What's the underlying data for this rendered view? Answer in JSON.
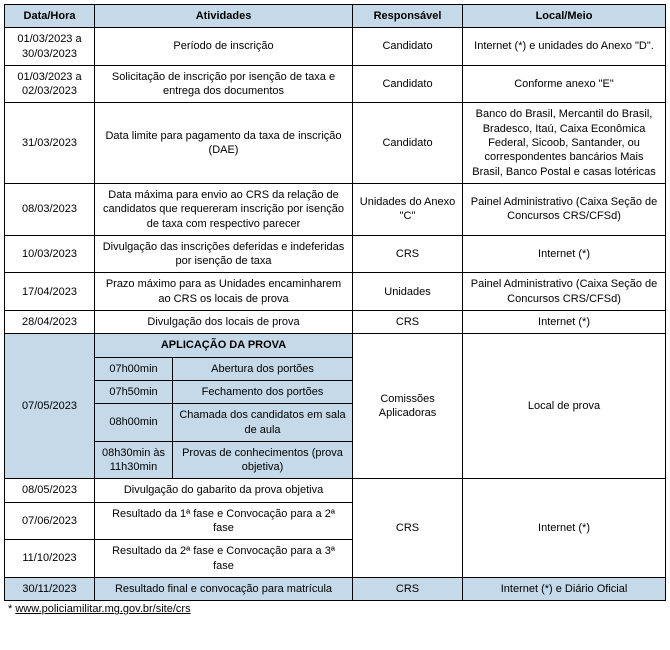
{
  "headers": {
    "col1": "Data/Hora",
    "col2": "Atividades",
    "col3": "Responsável",
    "col4": "Local/Meio"
  },
  "rows": {
    "r1": {
      "date": "01/03/2023 a 30/03/2023",
      "activity": "Período de inscrição",
      "resp": "Candidato",
      "local": "Internet (*) e unidades do Anexo \"D\"."
    },
    "r2": {
      "date": "01/03/2023 a 02/03/2023",
      "activity": "Solicitação de inscrição por isenção de taxa e entrega dos documentos",
      "resp": "Candidato",
      "local": "Conforme anexo \"E\""
    },
    "r3": {
      "date": "31/03/2023",
      "activity": "Data limite para pagamento da taxa de inscrição (DAE)",
      "resp": "Candidato",
      "local": "Banco do Brasil, Mercantil do Brasil, Bradesco, Itaú, Caixa Econômica Federal, Sicoob, Santander, ou correspondentes bancários Mais Brasil, Banco Postal e casas lotéricas"
    },
    "r4": {
      "date": "08/03/2023",
      "activity": "Data máxima para envio ao CRS da relação de candidatos que requereram inscrição por isenção de taxa com respectivo parecer",
      "resp": "Unidades do Anexo \"C\"",
      "local": "Painel Administrativo (Caixa Seção de Concursos CRS/CFSd)"
    },
    "r5": {
      "date": "10/03/2023",
      "activity": "Divulgação das inscrições deferidas e indeferidas por isenção de taxa",
      "resp": "CRS",
      "local": "Internet (*)"
    },
    "r6": {
      "date": "17/04/2023",
      "activity": "Prazo máximo para as Unidades encaminharem ao CRS os locais de prova",
      "resp": "Unidades",
      "local": "Painel Administrativo (Caixa Seção de Concursos CRS/CFSd)"
    },
    "r7": {
      "date": "28/04/2023",
      "activity": "Divulgação dos locais de prova",
      "resp": "CRS",
      "local": "Internet (*)"
    },
    "exam": {
      "title": "APLICAÇÃO DA PROVA",
      "date": "07/05/2023",
      "s1": {
        "time": "07h00min",
        "desc": "Abertura dos portões"
      },
      "s2": {
        "time": "07h50min",
        "desc": "Fechamento dos portões"
      },
      "s3": {
        "time": "08h00min",
        "desc": "Chamada dos candidatos em sala de aula"
      },
      "s4": {
        "time": "08h30min às 11h30min",
        "desc": "Provas de conhecimentos (prova objetiva)"
      },
      "resp": "Comissões Aplicadoras",
      "local": "Local de prova"
    },
    "r8": {
      "date": "08/05/2023",
      "activity": "Divulgação do gabarito da prova objetiva"
    },
    "r9": {
      "date": "07/06/2023",
      "activity": "Resultado da 1ª fase e Convocação para a 2ª fase"
    },
    "r10": {
      "date": "11/10/2023",
      "activity": "Resultado da 2ª fase e Convocação para a 3ª fase"
    },
    "group_resp": "CRS",
    "group_local": "Internet (*)",
    "r11": {
      "date": "30/11/2023",
      "activity": "Resultado final e convocação para matrícula",
      "resp": "CRS",
      "local": "Internet (*) e Diário Oficial"
    }
  },
  "footnote": {
    "prefix": "* ",
    "link": "www.policiamilitar.mg.gov.br/site/crs"
  }
}
